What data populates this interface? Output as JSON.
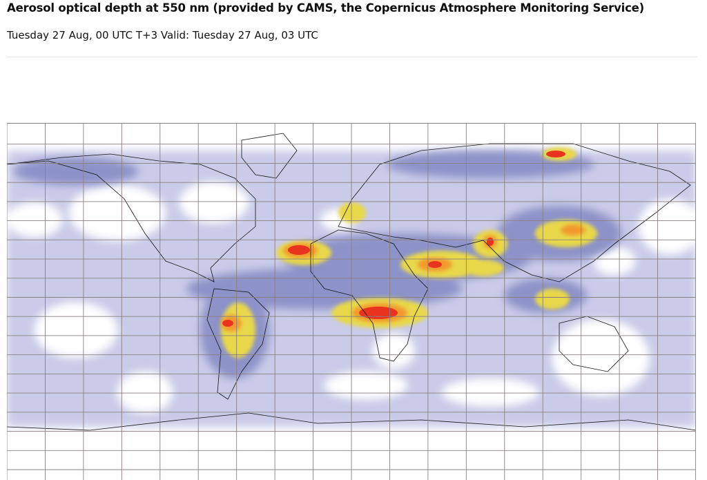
{
  "header": {
    "title": "Aerosol optical depth at 550 nm (provided by CAMS, the Copernicus Atmosphere Monitoring Service)",
    "subtitle": "Tuesday 27 Aug, 00 UTC T+3 Valid: Tuesday 27 Aug, 03 UTC"
  }
}
